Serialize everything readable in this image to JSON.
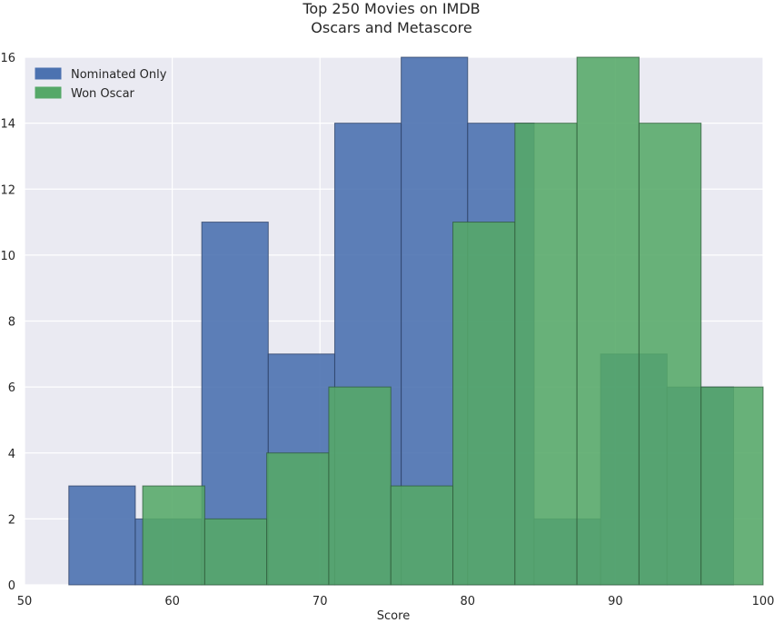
{
  "chart_data": {
    "type": "bar",
    "subtype": "histogram-overlay",
    "title": "Top 250 Movies on IMDB",
    "subtitle": "Oscars and Metascore",
    "xlabel": "Score",
    "ylabel": "",
    "xlim": [
      50,
      100
    ],
    "ylim": [
      0,
      16
    ],
    "xticks": [
      "50",
      "60",
      "70",
      "80",
      "90",
      "100"
    ],
    "yticks": [
      "0",
      "2",
      "4",
      "6",
      "8",
      "10",
      "12",
      "14",
      "16"
    ],
    "grid": true,
    "legend_position": "top-left",
    "series": [
      {
        "name": "Nominated Only",
        "color": "#4c72b0",
        "bins": [
          {
            "start": 53.0,
            "end": 57.5,
            "value": 3
          },
          {
            "start": 57.5,
            "end": 62.0,
            "value": 2
          },
          {
            "start": 62.0,
            "end": 66.5,
            "value": 11
          },
          {
            "start": 66.5,
            "end": 71.0,
            "value": 7
          },
          {
            "start": 71.0,
            "end": 75.5,
            "value": 14
          },
          {
            "start": 75.5,
            "end": 80.0,
            "value": 16
          },
          {
            "start": 80.0,
            "end": 84.5,
            "value": 14
          },
          {
            "start": 84.5,
            "end": 89.0,
            "value": 2
          },
          {
            "start": 89.0,
            "end": 93.5,
            "value": 7
          },
          {
            "start": 93.5,
            "end": 98.0,
            "value": 6
          }
        ]
      },
      {
        "name": "Won Oscar",
        "color": "#55a868",
        "bins": [
          {
            "start": 58.0,
            "end": 62.2,
            "value": 3
          },
          {
            "start": 62.2,
            "end": 66.4,
            "value": 2
          },
          {
            "start": 66.4,
            "end": 70.6,
            "value": 4
          },
          {
            "start": 70.6,
            "end": 74.8,
            "value": 6
          },
          {
            "start": 74.8,
            "end": 79.0,
            "value": 3
          },
          {
            "start": 79.0,
            "end": 83.2,
            "value": 11
          },
          {
            "start": 83.2,
            "end": 87.4,
            "value": 14
          },
          {
            "start": 87.4,
            "end": 91.6,
            "value": 16
          },
          {
            "start": 91.6,
            "end": 95.8,
            "value": 14
          },
          {
            "start": 95.8,
            "end": 100.0,
            "value": 6
          }
        ]
      }
    ]
  }
}
